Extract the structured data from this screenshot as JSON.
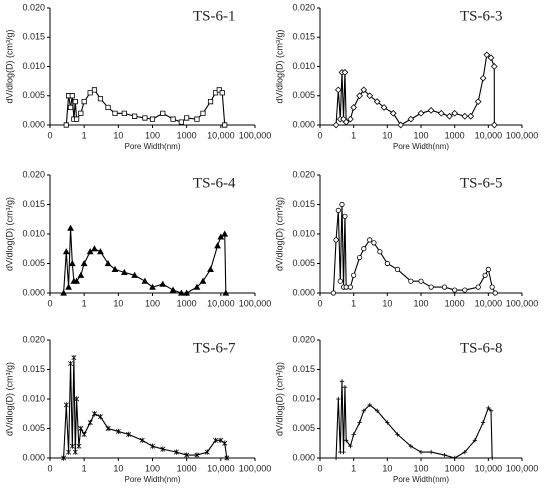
{
  "chart_data": [
    {
      "type": "line",
      "title": "TS-6-1",
      "ylabel": "dV/dlog(D) (cm³/g)",
      "xlabel": "Pore Width(nm)",
      "xscale": "log",
      "color": "#000000",
      "marker": "square",
      "xlim": [
        0.1,
        100000
      ],
      "xticks": [
        {
          "value": 0.1,
          "label": "0"
        },
        1,
        10,
        100,
        1000,
        {
          "value": 10000,
          "label": "10,000"
        },
        {
          "value": 100000,
          "label": "100,000"
        }
      ],
      "ylim": [
        0,
        0.02
      ],
      "yticks": [
        {
          "value": 0,
          "label": "0.000"
        },
        {
          "value": 0.005,
          "label": "0.005"
        },
        {
          "value": 0.01,
          "label": "0.010"
        },
        {
          "value": 0.015,
          "label": "0.015"
        },
        {
          "value": 0.02,
          "label": "0.020"
        }
      ],
      "x": [
        0.3,
        0.35,
        0.4,
        0.45,
        0.5,
        0.55,
        0.6,
        0.8,
        1,
        1.5,
        2,
        3,
        5,
        8,
        15,
        30,
        60,
        100,
        200,
        400,
        700,
        1000,
        2000,
        3000,
        5000,
        7000,
        9000,
        11000,
        13000
      ],
      "values": [
        0,
        0.005,
        0.003,
        0.005,
        0.001,
        0.004,
        0.001,
        0.002,
        0.004,
        0.0055,
        0.006,
        0.0045,
        0.003,
        0.002,
        0.002,
        0.0015,
        0.0012,
        0.001,
        0.002,
        0.001,
        0.0005,
        0.0012,
        0.001,
        0.002,
        0.004,
        0.0055,
        0.006,
        0.0055,
        0
      ]
    },
    {
      "type": "line",
      "title": "TS-6-3",
      "ylabel": "dV/dlog(D) (cm³/g)",
      "xlabel": "Pore Width(nm)",
      "xscale": "log",
      "color": "#000000",
      "marker": "diamond",
      "xlim": [
        0.1,
        100000
      ],
      "xticks": [
        {
          "value": 0.1,
          "label": "0"
        },
        1,
        10,
        100,
        1000,
        {
          "value": 10000,
          "label": "10,000"
        },
        {
          "value": 100000,
          "label": "100,000"
        }
      ],
      "ylim": [
        0,
        0.02
      ],
      "yticks": [
        {
          "value": 0,
          "label": "0.000"
        },
        {
          "value": 0.005,
          "label": "0.005"
        },
        {
          "value": 0.01,
          "label": "0.010"
        },
        {
          "value": 0.015,
          "label": "0.015"
        },
        {
          "value": 0.02,
          "label": "0.020"
        }
      ],
      "x": [
        0.3,
        0.35,
        0.4,
        0.45,
        0.5,
        0.55,
        0.6,
        0.8,
        1,
        1.5,
        2,
        3,
        5,
        8,
        15,
        25,
        50,
        100,
        200,
        400,
        700,
        1000,
        2000,
        3000,
        5000,
        7000,
        9000,
        12000,
        15000,
        15100
      ],
      "values": [
        0,
        0.006,
        0.001,
        0.009,
        0.001,
        0.009,
        0.0005,
        0.001,
        0.003,
        0.005,
        0.006,
        0.005,
        0.004,
        0.003,
        0.002,
        0,
        0.001,
        0.002,
        0.0025,
        0.002,
        0.0015,
        0.002,
        0.0015,
        0.0015,
        0.004,
        0.008,
        0.012,
        0.0115,
        0.01,
        0
      ]
    },
    {
      "type": "line",
      "title": "TS-6-4",
      "ylabel": "dV/dlog(D) (cm³/g)",
      "xscale": "log",
      "color": "#000000",
      "marker": "triangle",
      "xlim": [
        0.1,
        100000
      ],
      "xticks": [
        {
          "value": 0.1,
          "label": "0"
        },
        1,
        10,
        100,
        1000,
        {
          "value": 10000,
          "label": "10,000"
        },
        {
          "value": 100000,
          "label": "100,000"
        }
      ],
      "ylim": [
        0,
        0.02
      ],
      "yticks": [
        {
          "value": 0,
          "label": "0.000"
        },
        {
          "value": 0.005,
          "label": "0.005"
        },
        {
          "value": 0.01,
          "label": "0.010"
        },
        {
          "value": 0.015,
          "label": "0.015"
        },
        {
          "value": 0.02,
          "label": "0.020"
        }
      ],
      "x": [
        0.25,
        0.3,
        0.35,
        0.4,
        0.45,
        0.5,
        0.6,
        0.8,
        1,
        1.5,
        2,
        3,
        5,
        8,
        15,
        30,
        60,
        100,
        200,
        400,
        700,
        1000,
        2000,
        3000,
        5000,
        8000,
        10000,
        13000,
        14000
      ],
      "values": [
        0,
        0.007,
        0.001,
        0.011,
        0.005,
        0.002,
        0.002,
        0.003,
        0.005,
        0.007,
        0.0075,
        0.007,
        0.005,
        0.004,
        0.0035,
        0.003,
        0.002,
        0.001,
        0.0015,
        0.0005,
        0,
        0,
        0.001,
        0.002,
        0.004,
        0.008,
        0.0095,
        0.01,
        0
      ]
    },
    {
      "type": "line",
      "title": "TS-6-5",
      "ylabel": "dV/dlog(D) (cm³/g)",
      "xscale": "log",
      "color": "#000000",
      "marker": "circle",
      "xlim": [
        0.1,
        100000
      ],
      "xticks": [
        {
          "value": 0.1,
          "label": "0"
        },
        1,
        10,
        100,
        1000,
        {
          "value": 10000,
          "label": "10,000"
        },
        {
          "value": 100000,
          "label": "100,000"
        }
      ],
      "ylim": [
        0,
        0.02
      ],
      "yticks": [
        {
          "value": 0,
          "label": "0.000"
        },
        {
          "value": 0.005,
          "label": "0.005"
        },
        {
          "value": 0.01,
          "label": "0.010"
        },
        {
          "value": 0.015,
          "label": "0.015"
        },
        {
          "value": 0.02,
          "label": "0.020"
        }
      ],
      "x": [
        0.25,
        0.3,
        0.35,
        0.4,
        0.45,
        0.5,
        0.55,
        0.6,
        0.8,
        1,
        1.5,
        2,
        3,
        4,
        6,
        10,
        20,
        50,
        100,
        200,
        500,
        1000,
        2000,
        5000,
        8000,
        10000,
        13000,
        16000
      ],
      "values": [
        0,
        0.009,
        0.014,
        0.002,
        0.015,
        0.001,
        0.013,
        0.001,
        0.001,
        0.003,
        0.006,
        0.0075,
        0.009,
        0.0085,
        0.007,
        0.005,
        0.004,
        0.002,
        0.002,
        0.001,
        0.001,
        0.0005,
        0.0005,
        0.001,
        0.003,
        0.004,
        0.001,
        0
      ]
    },
    {
      "type": "line",
      "title": "TS-6-7",
      "ylabel": "dV/dlog(D) (cm³/g)",
      "xlabel": "Pore Width(nm)",
      "xscale": "log",
      "color": "#000000",
      "marker": "star",
      "xlim": [
        0.1,
        100000
      ],
      "xticks": [
        {
          "value": 0.1,
          "label": "0"
        },
        1,
        10,
        100,
        1000,
        {
          "value": 10000,
          "label": "10,000"
        },
        {
          "value": 100000,
          "label": "100,000"
        }
      ],
      "ylim": [
        0,
        0.02
      ],
      "yticks": [
        {
          "value": 0,
          "label": "0.000"
        },
        {
          "value": 0.005,
          "label": "0.005"
        },
        {
          "value": 0.01,
          "label": "0.010"
        },
        {
          "value": 0.015,
          "label": "0.015"
        },
        {
          "value": 0.02,
          "label": "0.020"
        }
      ],
      "x": [
        0.25,
        0.3,
        0.35,
        0.4,
        0.45,
        0.5,
        0.55,
        0.6,
        0.7,
        0.8,
        1,
        1.5,
        2,
        3,
        5,
        10,
        20,
        50,
        100,
        200,
        500,
        1000,
        2000,
        4000,
        7000,
        10000,
        13000,
        15000
      ],
      "values": [
        0,
        0.009,
        0.001,
        0.016,
        0.002,
        0.017,
        0.001,
        0.01,
        0.002,
        0.005,
        0.004,
        0.006,
        0.0075,
        0.007,
        0.005,
        0.0045,
        0.004,
        0.003,
        0.002,
        0.0015,
        0.001,
        0.0005,
        0.0005,
        0.001,
        0.003,
        0.003,
        0.0025,
        0
      ]
    },
    {
      "type": "line",
      "title": "TS-6-8",
      "ylabel": "dV/dlog(D) (cm³/g)",
      "xlabel": "Pore Width(nm)",
      "xscale": "log",
      "color": "#000000",
      "marker": "plus",
      "xlim": [
        0.1,
        100000
      ],
      "xticks": [
        {
          "value": 0.1,
          "label": "0"
        },
        1,
        10,
        100,
        1000,
        {
          "value": 10000,
          "label": "10,000"
        },
        {
          "value": 100000,
          "label": "100,000"
        }
      ],
      "ylim": [
        0,
        0.02
      ],
      "yticks": [
        {
          "value": 0,
          "label": "0.000"
        },
        {
          "value": 0.005,
          "label": "0.005"
        },
        {
          "value": 0.01,
          "label": "0.010"
        },
        {
          "value": 0.015,
          "label": "0.015"
        },
        {
          "value": 0.02,
          "label": "0.020"
        }
      ],
      "x": [
        0.3,
        0.35,
        0.4,
        0.45,
        0.5,
        0.55,
        0.6,
        0.8,
        1,
        1.5,
        2,
        3,
        5,
        10,
        20,
        50,
        100,
        200,
        500,
        1000,
        2000,
        4000,
        7000,
        10000,
        12000,
        13000
      ],
      "values": [
        0,
        0.01,
        0.001,
        0.013,
        0.001,
        0.012,
        0.003,
        0.002,
        0.004,
        0.006,
        0.008,
        0.009,
        0.008,
        0.006,
        0.004,
        0.002,
        0.001,
        0.001,
        0.0005,
        0,
        0.001,
        0.003,
        0.006,
        0.0085,
        0.008,
        0
      ]
    }
  ]
}
